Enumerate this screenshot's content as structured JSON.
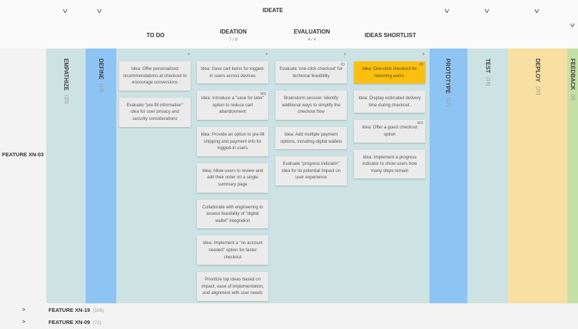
{
  "header": {
    "group": "IDEATE",
    "subcolumns": [
      {
        "title": "TO DO",
        "count": ""
      },
      {
        "title": "IDEATION",
        "count": "7 / 8"
      },
      {
        "title": "EVALUATION",
        "count": "4 / 4"
      },
      {
        "title": "IDEAS SHORTLIST",
        "count": ""
      }
    ]
  },
  "stages": [
    {
      "name": "EMPATHIZE",
      "count": "(20)",
      "color": "#cde2e2"
    },
    {
      "name": "DEFINE",
      "count": "(14)",
      "color": "#8ec4f3"
    },
    {
      "name": "PROTOTYPE",
      "count": "(17)",
      "color": "#8ec4f3"
    },
    {
      "name": "TEST",
      "count": "(19)",
      "color": "#cde2e2"
    },
    {
      "name": "DEPLOY",
      "count": "(20)",
      "color": "#f8dfa2"
    },
    {
      "name": "FEEDBACK",
      "count": "(8)",
      "color": "#c5e0a5"
    }
  ],
  "lane": {
    "title": "FEATURE XN-03"
  },
  "columns": [
    {
      "cards": [
        {
          "text": "Idea: Offer personalized recommendations at checkout to encourage conversions"
        },
        {
          "text": "Evaluate \"pre-fill information\" idea for user privacy and security considerations"
        }
      ]
    },
    {
      "cards": [
        {
          "text": "Idea: Save cart items for logged-in users across devices"
        },
        {
          "text": "Idea: Introduce a \"save for later\" option to reduce cart abandonment",
          "tag": "MS"
        },
        {
          "text": "Idea: Provide an option to pre-fill shipping and payment info for logged-in users"
        },
        {
          "text": "Idea: Allow users to review and edit their order on a single summary page"
        },
        {
          "text": "Collaborate with engineering to assess feasibility of \"digital wallet\" integration"
        },
        {
          "text": "Idea: Implement a \"no account needed\" option for faster checkout"
        },
        {
          "text": "Prioritize top ideas based on impact, ease of implementation, and alignment with user needs"
        }
      ]
    },
    {
      "cards": [
        {
          "text": "Evaluate 'one-click checkout' for technical feasibility",
          "tag": "IO"
        },
        {
          "text": "Brainstorm session: Identify additional ways to simplify the checkout flow"
        },
        {
          "text": "Idea: Add multiple payment options, including digital wallets"
        },
        {
          "text": "Evaluate \"progress indicator\" idea for its potential impact on user experience"
        }
      ]
    },
    {
      "cards": [
        {
          "text": "Idea: One-click checkout for returning users.",
          "tag": "IB",
          "highlight": true
        },
        {
          "text": "Idea: Display estimated delivery time during checkout."
        },
        {
          "text": "Idea: Offer a guest checkout option",
          "tag": "MS"
        },
        {
          "text": "Idea: Implement a progress indicator to show users how many steps remain"
        }
      ]
    }
  ],
  "collapsed_lanes": [
    {
      "title": "FEATURE XN-19",
      "count": "(105)"
    },
    {
      "title": "FEATURE XN-09",
      "count": "(72)"
    }
  ]
}
